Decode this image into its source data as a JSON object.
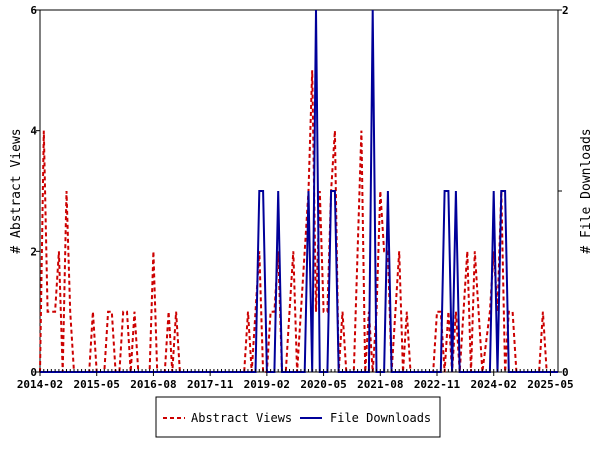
{
  "chart_data": {
    "type": "line",
    "x_tick_labels": [
      "2014-02",
      "2015-05",
      "2016-08",
      "2017-11",
      "2019-02",
      "2020-05",
      "2021-08",
      "2022-11",
      "2024-02",
      "2025-05"
    ],
    "x_range": [
      "2014-02",
      "2025-07"
    ],
    "ylabel_left": "# Abstract Views",
    "ylabel_right": "# File Downloads",
    "ylim_left": [
      0,
      6
    ],
    "ylim_right": [
      0,
      2
    ],
    "yticks_left": [
      "0",
      "2",
      "4",
      "6"
    ],
    "yticks_right": [
      "0",
      "1",
      "2"
    ],
    "legend_position": "bottom-center",
    "grid": false,
    "series": [
      {
        "name": "Abstract Views",
        "axis": "left",
        "color": "#cc0000",
        "style": "dashed",
        "points": [
          [
            "2014-02",
            0
          ],
          [
            "2014-03",
            4
          ],
          [
            "2014-04",
            1
          ],
          [
            "2014-05",
            1
          ],
          [
            "2014-06",
            1
          ],
          [
            "2014-07",
            2
          ],
          [
            "2014-08",
            0
          ],
          [
            "2014-09",
            3
          ],
          [
            "2014-10",
            1
          ],
          [
            "2014-11",
            0
          ],
          [
            "2015-03",
            0
          ],
          [
            "2015-04",
            1
          ],
          [
            "2015-05",
            0
          ],
          [
            "2015-07",
            0
          ],
          [
            "2015-08",
            1
          ],
          [
            "2015-09",
            1
          ],
          [
            "2015-10",
            0
          ],
          [
            "2015-11",
            0
          ],
          [
            "2015-12",
            1
          ],
          [
            "2016-01",
            1
          ],
          [
            "2016-02",
            0
          ],
          [
            "2016-03",
            1
          ],
          [
            "2016-04",
            0
          ],
          [
            "2016-07",
            0
          ],
          [
            "2016-08",
            2
          ],
          [
            "2016-09",
            0
          ],
          [
            "2016-11",
            0
          ],
          [
            "2016-12",
            1
          ],
          [
            "2017-01",
            0
          ],
          [
            "2017-02",
            1
          ],
          [
            "2017-03",
            0
          ],
          [
            "2018-08",
            0
          ],
          [
            "2018-09",
            1
          ],
          [
            "2018-10",
            0
          ],
          [
            "2018-11",
            1
          ],
          [
            "2018-12",
            2
          ],
          [
            "2019-01",
            0
          ],
          [
            "2019-02",
            0
          ],
          [
            "2019-03",
            1
          ],
          [
            "2019-04",
            1
          ],
          [
            "2019-05",
            2
          ],
          [
            "2019-06",
            0
          ],
          [
            "2019-07",
            0
          ],
          [
            "2019-08",
            1
          ],
          [
            "2019-09",
            2
          ],
          [
            "2019-10",
            0
          ],
          [
            "2019-11",
            1
          ],
          [
            "2019-12",
            2
          ],
          [
            "2020-01",
            3
          ],
          [
            "2020-02",
            5
          ],
          [
            "2020-03",
            1
          ],
          [
            "2020-04",
            3
          ],
          [
            "2020-05",
            1
          ],
          [
            "2020-06",
            1
          ],
          [
            "2020-07",
            3
          ],
          [
            "2020-08",
            4
          ],
          [
            "2020-09",
            0
          ],
          [
            "2020-10",
            1
          ],
          [
            "2020-11",
            0
          ],
          [
            "2021-01",
            0
          ],
          [
            "2021-02",
            2
          ],
          [
            "2021-03",
            4
          ],
          [
            "2021-04",
            0
          ],
          [
            "2021-05",
            1
          ],
          [
            "2021-06",
            0
          ],
          [
            "2021-07",
            1
          ],
          [
            "2021-08",
            3
          ],
          [
            "2021-09",
            2
          ],
          [
            "2021-10",
            2
          ],
          [
            "2021-11",
            0
          ],
          [
            "2021-12",
            1
          ],
          [
            "2022-01",
            2
          ],
          [
            "2022-02",
            0
          ],
          [
            "2022-03",
            1
          ],
          [
            "2022-04",
            0
          ],
          [
            "2022-10",
            0
          ],
          [
            "2022-11",
            1
          ],
          [
            "2022-12",
            1
          ],
          [
            "2023-01",
            0
          ],
          [
            "2023-02",
            1
          ],
          [
            "2023-03",
            0
          ],
          [
            "2023-04",
            1
          ],
          [
            "2023-05",
            0
          ],
          [
            "2023-06",
            1
          ],
          [
            "2023-07",
            2
          ],
          [
            "2023-08",
            0
          ],
          [
            "2023-09",
            2
          ],
          [
            "2023-10",
            1
          ],
          [
            "2023-11",
            0
          ],
          [
            "2024-01",
            1
          ],
          [
            "2024-02",
            2
          ],
          [
            "2024-03",
            1
          ],
          [
            "2024-04",
            3
          ],
          [
            "2024-05",
            0
          ],
          [
            "2024-06",
            1
          ],
          [
            "2024-07",
            1
          ],
          [
            "2024-08",
            0
          ],
          [
            "2025-02",
            0
          ],
          [
            "2025-03",
            1
          ],
          [
            "2025-04",
            0
          ],
          [
            "2025-07",
            0
          ]
        ]
      },
      {
        "name": "File Downloads",
        "axis": "right",
        "color": "#000099",
        "style": "solid",
        "points": [
          [
            "2014-02",
            0
          ],
          [
            "2018-11",
            0
          ],
          [
            "2018-12",
            1
          ],
          [
            "2019-01",
            1
          ],
          [
            "2019-02",
            0
          ],
          [
            "2019-04",
            0
          ],
          [
            "2019-05",
            1
          ],
          [
            "2019-06",
            0
          ],
          [
            "2019-12",
            0
          ],
          [
            "2020-01",
            1
          ],
          [
            "2020-02",
            0
          ],
          [
            "2020-03",
            2
          ],
          [
            "2020-04",
            0
          ],
          [
            "2020-06",
            0
          ],
          [
            "2020-07",
            1
          ],
          [
            "2020-08",
            1
          ],
          [
            "2020-09",
            0
          ],
          [
            "2021-05",
            0
          ],
          [
            "2021-06",
            2
          ],
          [
            "2021-07",
            0
          ],
          [
            "2021-09",
            0
          ],
          [
            "2021-10",
            1
          ],
          [
            "2021-11",
            0
          ],
          [
            "2022-12",
            0
          ],
          [
            "2023-01",
            1
          ],
          [
            "2023-02",
            1
          ],
          [
            "2023-03",
            0
          ],
          [
            "2023-04",
            1
          ],
          [
            "2023-05",
            0
          ],
          [
            "2024-01",
            0
          ],
          [
            "2024-02",
            1
          ],
          [
            "2024-03",
            0
          ],
          [
            "2024-04",
            1
          ],
          [
            "2024-05",
            1
          ],
          [
            "2024-06",
            0
          ],
          [
            "2025-07",
            0
          ]
        ]
      }
    ]
  }
}
